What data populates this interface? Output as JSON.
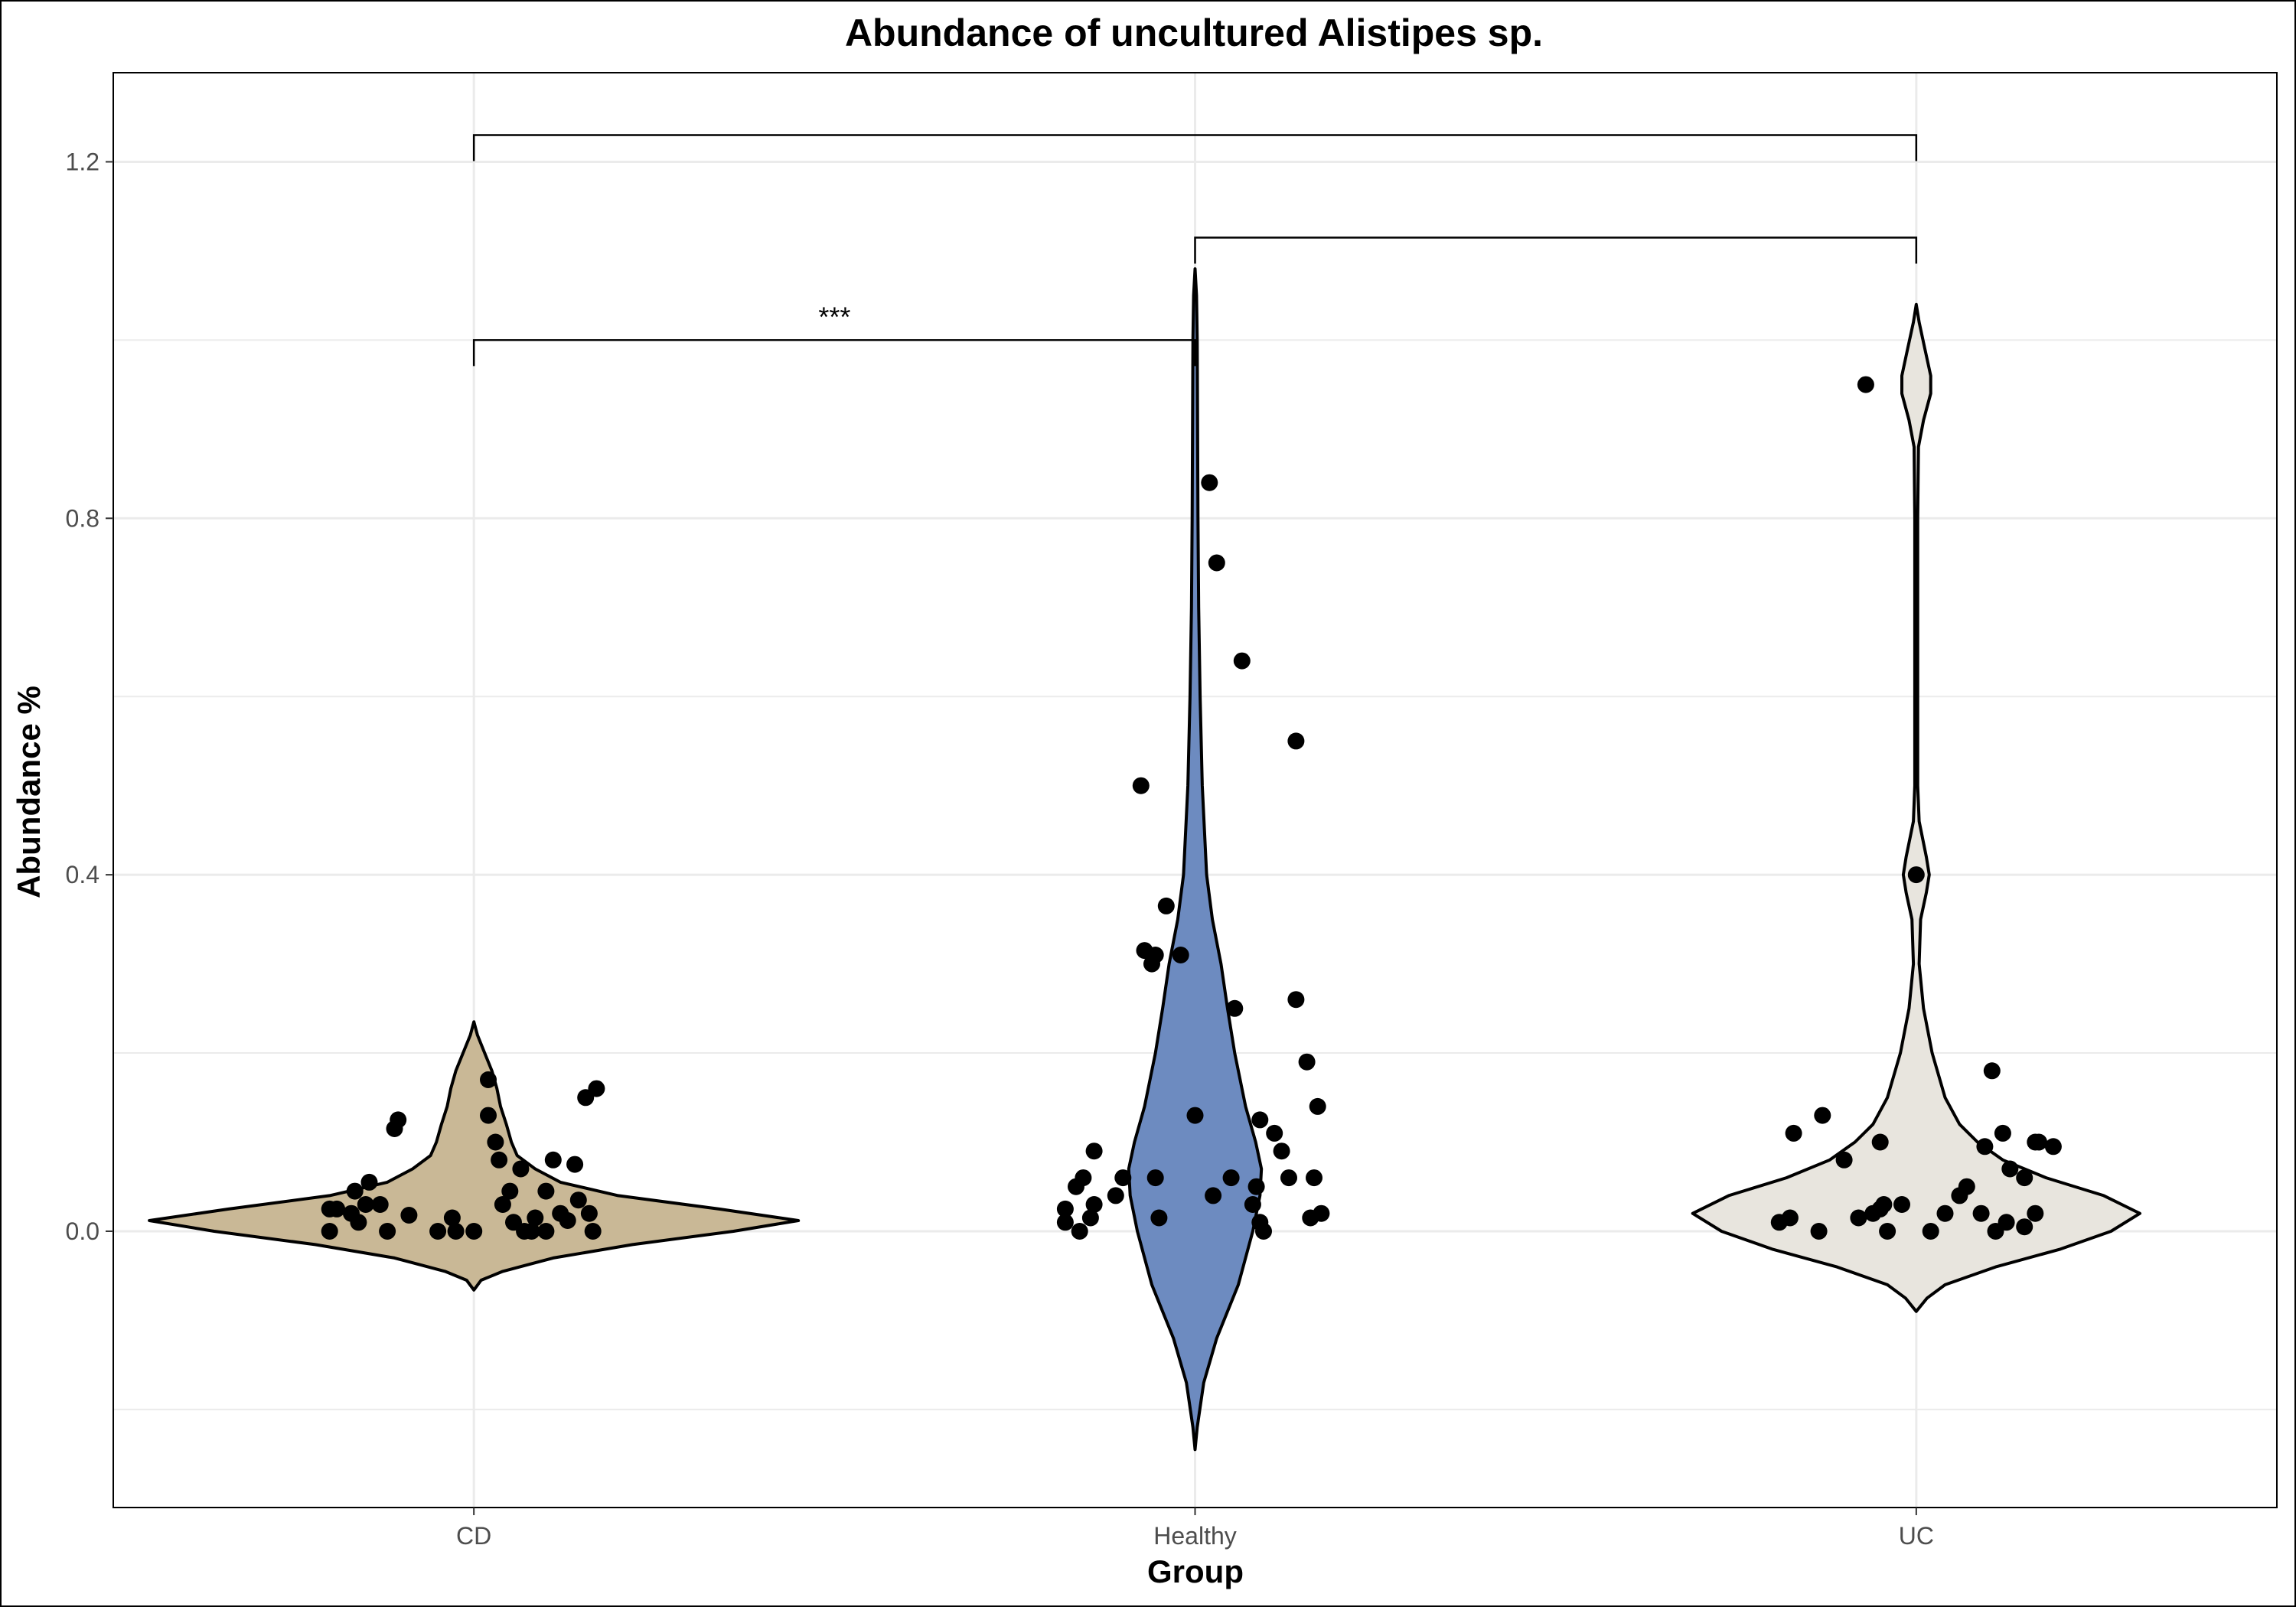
{
  "chart_data": {
    "type": "violin",
    "title": "Abundance of uncultured Alistipes sp.",
    "xlabel": "Group",
    "ylabel": "Abundance %",
    "categories": [
      "CD",
      "Healthy",
      "UC"
    ],
    "ylim": [
      -0.31,
      1.3
    ],
    "yticks": [
      0.0,
      0.4,
      0.8,
      1.2
    ],
    "ytick_labels": [
      "0.0",
      "0.4",
      "0.8",
      "1.2"
    ],
    "grid": true,
    "legend": "none",
    "colors": {
      "CD": "#c9b896",
      "Healthy": "#6d8bc0",
      "UC": "#e8e5de"
    },
    "violins": [
      {
        "group": "CD",
        "profile": [
          [
            -0.066,
            0
          ],
          [
            -0.055,
            0.01
          ],
          [
            -0.045,
            0.04
          ],
          [
            -0.03,
            0.11
          ],
          [
            -0.015,
            0.22
          ],
          [
            0.0,
            0.36
          ],
          [
            0.012,
            0.45
          ],
          [
            0.025,
            0.34
          ],
          [
            0.04,
            0.2
          ],
          [
            0.055,
            0.12
          ],
          [
            0.07,
            0.085
          ],
          [
            0.085,
            0.06
          ],
          [
            0.1,
            0.052
          ],
          [
            0.12,
            0.045
          ],
          [
            0.14,
            0.037
          ],
          [
            0.16,
            0.032
          ],
          [
            0.18,
            0.025
          ],
          [
            0.2,
            0.015
          ],
          [
            0.22,
            0.005
          ],
          [
            0.235,
            0
          ]
        ]
      },
      {
        "group": "Healthy",
        "profile": [
          [
            -0.245,
            0
          ],
          [
            -0.22,
            0.003
          ],
          [
            -0.17,
            0.012
          ],
          [
            -0.12,
            0.03
          ],
          [
            -0.06,
            0.06
          ],
          [
            0.0,
            0.08
          ],
          [
            0.04,
            0.09
          ],
          [
            0.07,
            0.092
          ],
          [
            0.1,
            0.084
          ],
          [
            0.14,
            0.07
          ],
          [
            0.2,
            0.055
          ],
          [
            0.25,
            0.045
          ],
          [
            0.3,
            0.036
          ],
          [
            0.35,
            0.024
          ],
          [
            0.4,
            0.016
          ],
          [
            0.5,
            0.01
          ],
          [
            0.6,
            0.007
          ],
          [
            0.7,
            0.005
          ],
          [
            0.8,
            0.004
          ],
          [
            0.9,
            0.0035
          ],
          [
            1.0,
            0.003
          ],
          [
            1.05,
            0.002
          ],
          [
            1.08,
            0
          ]
        ]
      },
      {
        "group": "UC",
        "profile": [
          [
            -0.09,
            0
          ],
          [
            -0.075,
            0.015
          ],
          [
            -0.06,
            0.04
          ],
          [
            -0.04,
            0.11
          ],
          [
            -0.02,
            0.2
          ],
          [
            0.0,
            0.27
          ],
          [
            0.02,
            0.31
          ],
          [
            0.04,
            0.26
          ],
          [
            0.06,
            0.18
          ],
          [
            0.08,
            0.12
          ],
          [
            0.1,
            0.085
          ],
          [
            0.12,
            0.06
          ],
          [
            0.15,
            0.04
          ],
          [
            0.2,
            0.022
          ],
          [
            0.25,
            0.01
          ],
          [
            0.3,
            0.004
          ],
          [
            0.35,
            0.006
          ],
          [
            0.38,
            0.014
          ],
          [
            0.4,
            0.018
          ],
          [
            0.42,
            0.014
          ],
          [
            0.46,
            0.004
          ],
          [
            0.5,
            0.002
          ],
          [
            0.6,
            0.002
          ],
          [
            0.8,
            0.002
          ],
          [
            0.88,
            0.003
          ],
          [
            0.91,
            0.01
          ],
          [
            0.94,
            0.02
          ],
          [
            0.96,
            0.02
          ],
          [
            0.99,
            0.012
          ],
          [
            1.02,
            0.004
          ],
          [
            1.04,
            0
          ]
        ]
      }
    ],
    "points": [
      {
        "group": "CD",
        "offsets": [
          -0.2,
          -0.19,
          -0.165,
          -0.17,
          -0.13,
          -0.145,
          -0.16,
          -0.12,
          -0.105,
          -0.11,
          -0.09,
          -0.2,
          -0.15,
          -0.05,
          -0.025,
          -0.03,
          0.0,
          0.02,
          0.02,
          0.03,
          0.035,
          0.05,
          0.04,
          0.055,
          0.065,
          0.07,
          0.085,
          0.08,
          0.1,
          0.1,
          0.11,
          0.12,
          0.13,
          0.14,
          0.145,
          0.155,
          0.17,
          0.16,
          0.165
        ],
        "values": [
          0.0,
          0.025,
          0.045,
          0.02,
          0.03,
          0.055,
          0.01,
          0.0,
          0.125,
          0.115,
          0.018,
          0.025,
          0.03,
          0.0,
          0.0,
          0.015,
          0.0,
          0.17,
          0.13,
          0.1,
          0.08,
          0.045,
          0.03,
          0.01,
          0.07,
          0.0,
          0.015,
          0.0,
          0.0,
          0.045,
          0.08,
          0.02,
          0.012,
          0.075,
          0.035,
          0.15,
          0.16,
          0.02,
          0.0
        ]
      },
      {
        "group": "Healthy",
        "offsets": [
          -0.18,
          -0.18,
          -0.165,
          -0.155,
          -0.14,
          -0.16,
          -0.145,
          -0.14,
          -0.11,
          -0.1,
          -0.055,
          -0.075,
          -0.06,
          -0.055,
          -0.04,
          -0.07,
          -0.02,
          -0.05,
          0.0,
          0.02,
          0.03,
          0.025,
          0.05,
          0.055,
          0.065,
          0.085,
          0.09,
          0.08,
          0.09,
          0.095,
          0.11,
          0.12,
          0.13,
          0.14,
          0.14,
          0.155,
          0.17,
          0.165,
          0.16,
          0.175
        ],
        "values": [
          0.01,
          0.025,
          0.05,
          0.06,
          0.09,
          0.0,
          0.015,
          0.03,
          0.04,
          0.06,
          0.06,
          0.5,
          0.3,
          0.31,
          0.365,
          0.315,
          0.31,
          0.015,
          0.13,
          0.84,
          0.75,
          0.04,
          0.06,
          0.25,
          0.64,
          0.05,
          0.01,
          0.03,
          0.125,
          0.0,
          0.11,
          0.09,
          0.06,
          0.55,
          0.26,
          0.19,
          0.14,
          0.06,
          0.015,
          0.02
        ]
      },
      {
        "group": "UC",
        "offsets": [
          -0.19,
          -0.175,
          -0.17,
          -0.13,
          -0.135,
          -0.1,
          -0.07,
          -0.08,
          -0.06,
          -0.05,
          -0.05,
          -0.045,
          -0.04,
          -0.02,
          0.0,
          0.02,
          0.04,
          0.06,
          0.07,
          0.09,
          0.095,
          0.11,
          0.105,
          0.12,
          0.125,
          0.13,
          0.15,
          0.15,
          0.165,
          0.17,
          0.165,
          0.19
        ],
        "values": [
          0.01,
          0.015,
          0.11,
          0.13,
          0.0,
          0.08,
          0.95,
          0.015,
          0.02,
          0.025,
          0.1,
          0.03,
          0.0,
          0.03,
          0.4,
          0.0,
          0.02,
          0.04,
          0.05,
          0.02,
          0.095,
          0.0,
          0.18,
          0.11,
          0.01,
          0.07,
          0.06,
          0.005,
          0.02,
          0.1,
          0.1,
          0.095
        ]
      }
    ],
    "significance_brackets": [
      {
        "from": "CD",
        "to": "Healthy",
        "y": 1.0,
        "label": "***"
      },
      {
        "from": "Healthy",
        "to": "UC",
        "y": 1.115,
        "label": ""
      },
      {
        "from": "CD",
        "to": "UC",
        "y": 1.23,
        "label": ""
      }
    ]
  }
}
